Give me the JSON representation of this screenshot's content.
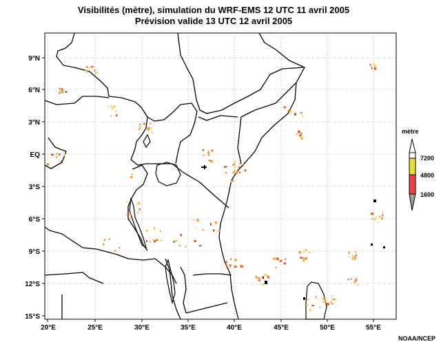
{
  "title_line1": "Visibilités (mètre), simulation du WRF-EMS 12 UTC 11 avril 2005",
  "title_line2": "Prévision valide 13 UTC 12 avril 2005",
  "credit": "NOAA/NCEP",
  "legend": {
    "title": "mètre",
    "levels": [
      "7200",
      "4800",
      "1600"
    ],
    "colors": {
      "high": "#ffffff",
      "yellow": "#e8e030",
      "red": "#f04040",
      "grey": "#a0a0a0"
    }
  },
  "axes": {
    "lon_ticks": [
      "20°E",
      "25°E",
      "30°E",
      "35°E",
      "40°E",
      "45°E",
      "50°E",
      "55°E"
    ],
    "lat_ticks": [
      "9°N",
      "6°N",
      "3°N",
      "EQ",
      "3°S",
      "6°S",
      "9°S",
      "12°S",
      "15°S"
    ],
    "lon_range": [
      19.7,
      57.5
    ],
    "lat_range": [
      -15.3,
      11.0
    ],
    "grid": true
  },
  "colors": {
    "low_vis": "#e05a20",
    "mid_vis": "#f0a040",
    "light_vis": "#f0d060"
  }
}
